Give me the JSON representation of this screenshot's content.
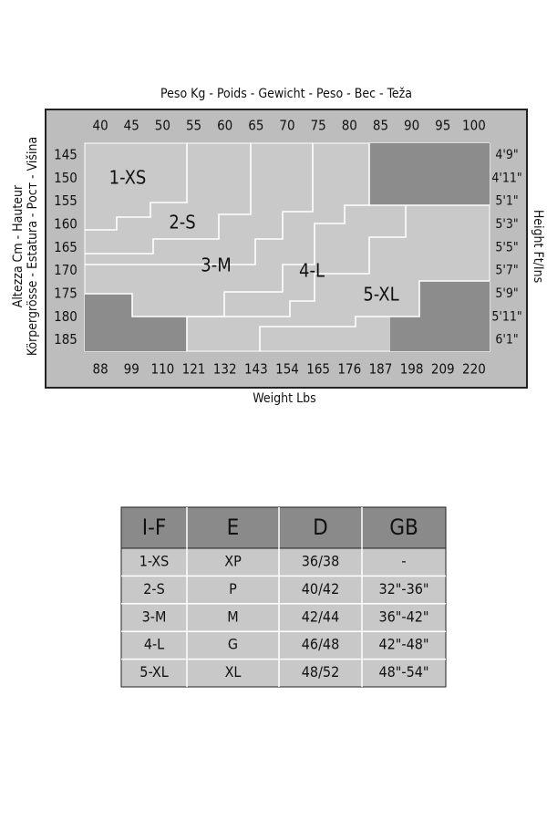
{
  "chart": {
    "top_label": "Peso Kg - Poids - Gewicht - Peso - Вес - Teža",
    "left_label": [
      "Altezza Cm - Hauteur",
      "Körpergrösse - Estatura - Рост - Višina"
    ],
    "right_label": "Height Ft/Ins",
    "bottom_label": "Weight Lbs",
    "kg": [
      "40",
      "45",
      "50",
      "55",
      "60",
      "65",
      "70",
      "75",
      "80",
      "85",
      "90",
      "95",
      "100"
    ],
    "cm": [
      "145",
      "150",
      "155",
      "160",
      "165",
      "170",
      "175",
      "180",
      "185"
    ],
    "ft": [
      "4'9\"",
      "4'11\"",
      "5'1\"",
      "5'3\"",
      "5'5\"",
      "5'7\"",
      "5'9\"",
      "5'11\"",
      "6'1\""
    ],
    "lbs": [
      "88",
      "99",
      "110",
      "121",
      "132",
      "143",
      "154",
      "165",
      "176",
      "187",
      "198",
      "209",
      "220"
    ],
    "zones": [
      "1-XS",
      "2-S",
      "3-M",
      "4-L",
      "5-XL"
    ]
  },
  "table": {
    "header": [
      "I-F",
      "E",
      "D",
      "GB"
    ],
    "rows": [
      [
        "1-XS",
        "XP",
        "36/38",
        "-"
      ],
      [
        "2-S",
        "P",
        "40/42",
        "32\"-36\""
      ],
      [
        "3-M",
        "M",
        "42/44",
        "36\"-42\""
      ],
      [
        "4-L",
        "G",
        "46/48",
        "42\"-48\""
      ],
      [
        "5-XL",
        "XL",
        "48/52",
        "48\"-54\""
      ]
    ]
  }
}
